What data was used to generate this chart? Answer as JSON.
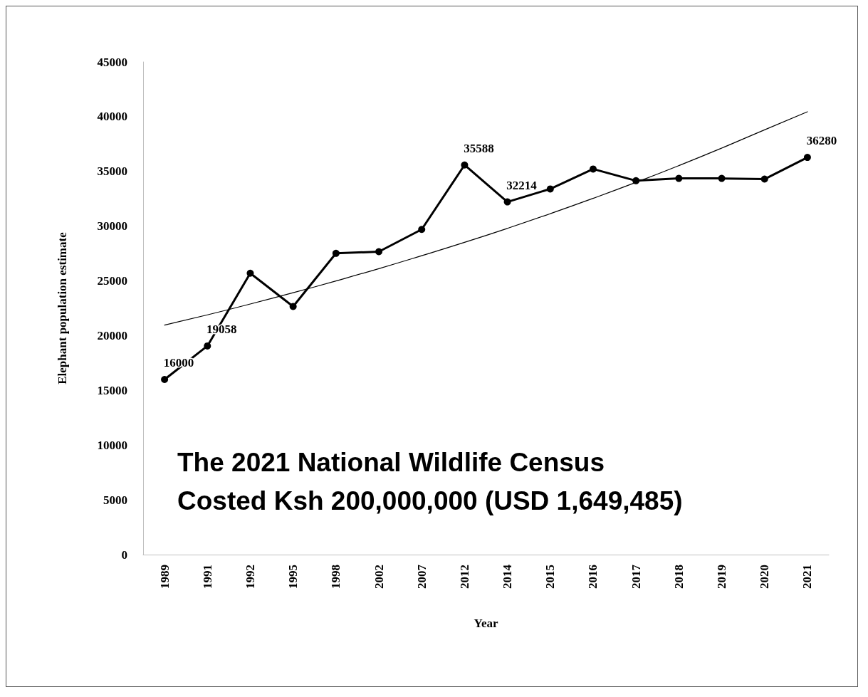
{
  "chart_data": {
    "type": "line",
    "xlabel": "Year",
    "ylabel": "Elephant population estimate",
    "categories": [
      "1989",
      "1991",
      "1992",
      "1995",
      "1998",
      "2002",
      "2007",
      "2012",
      "2014",
      "2015",
      "2016",
      "2017",
      "2018",
      "2019",
      "2020",
      "2021"
    ],
    "series": [
      {
        "color": "#000000",
        "marker": "circle",
        "values": [
          16000,
          19058,
          25700,
          22660,
          27520,
          27670,
          29700,
          35588,
          32214,
          33400,
          35220,
          34150,
          34360,
          34360,
          34300,
          36280
        ],
        "value_labels": [
          "16000",
          "19058",
          null,
          null,
          null,
          null,
          null,
          "35588",
          "32214",
          null,
          null,
          null,
          null,
          null,
          null,
          "36280"
        ]
      },
      {
        "color": "#000000",
        "marker": "none",
        "values": [
          20960,
          21900,
          22890,
          23920,
          25000,
          26120,
          27300,
          28520,
          29800,
          31140,
          32540,
          34000,
          35530,
          37130,
          38800,
          40450
        ]
      }
    ],
    "ylim": [
      0,
      45000
    ],
    "yticks": [
      0,
      5000,
      10000,
      15000,
      20000,
      25000,
      30000,
      35000,
      40000,
      45000
    ],
    "grid": false,
    "line_style": "solid",
    "annotations": [
      "The 2021 National Wildlife Census",
      "Costed Ksh 200,000,000 (USD 1,649,485)"
    ]
  }
}
